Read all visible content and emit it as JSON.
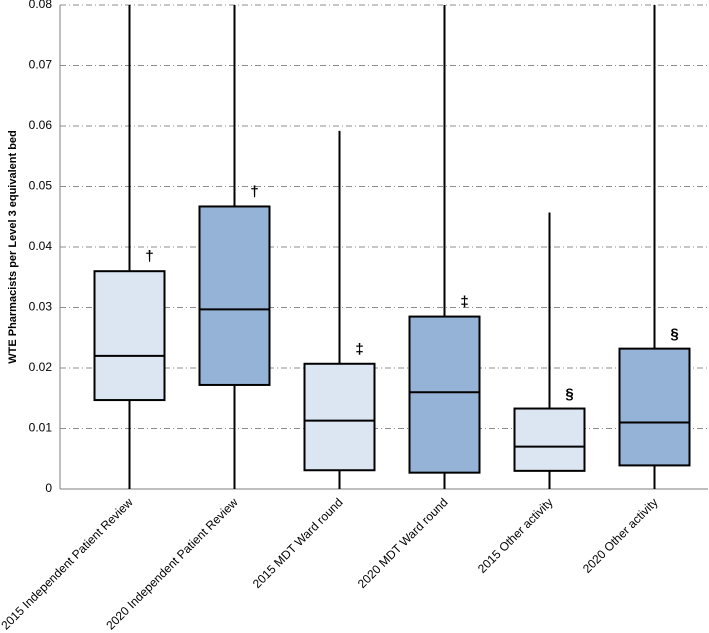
{
  "chart_data": {
    "type": "box",
    "y_label": "WTE Pharmacists per Level 3 equivalent bed",
    "categories": [
      "2015 Independent Patient Review",
      "2020 Independent Patient Review",
      "2015 MDT Ward round",
      "2020 MDT Ward round",
      "2015 Other activity",
      "2020 Other activity"
    ],
    "colors": [
      "#dce6f2",
      "#95b3d7",
      "#dce6f2",
      "#95b3d7",
      "#dce6f2",
      "#95b3d7"
    ],
    "boxes": [
      {
        "min": 0,
        "q1": 0.0147,
        "median": 0.022,
        "q3": 0.036,
        "max": 0.08
      },
      {
        "min": 0,
        "q1": 0.0172,
        "median": 0.0297,
        "q3": 0.0467,
        "max": 0.08
      },
      {
        "min": 0,
        "q1": 0.0031,
        "median": 0.0113,
        "q3": 0.0207,
        "max": 0.0592
      },
      {
        "min": 0,
        "q1": 0.0027,
        "median": 0.016,
        "q3": 0.0285,
        "max": 0.08
      },
      {
        "min": 0,
        "q1": 0.003,
        "median": 0.007,
        "q3": 0.0133,
        "max": 0.0457
      },
      {
        "min": 0,
        "q1": 0.0039,
        "median": 0.011,
        "q3": 0.0232,
        "max": 0.08
      }
    ],
    "annotations": [
      "†",
      "†",
      "‡",
      "‡",
      "§",
      "§"
    ],
    "ylim": [
      0,
      0.08
    ],
    "yticks": [
      0,
      0.01,
      0.02,
      0.03,
      0.04,
      0.05,
      0.06,
      0.07,
      0.08
    ],
    "grid": true
  }
}
